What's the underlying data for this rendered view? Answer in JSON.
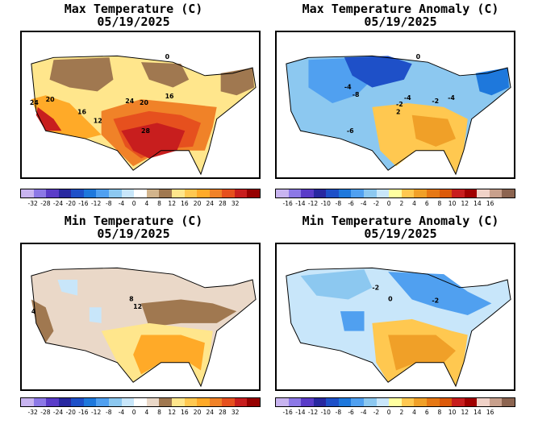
{
  "panels": [
    {
      "id": "max_temp",
      "title": "Max Temperature (C)",
      "date": "05/19/2025",
      "colorbar": {
        "colors": [
          "#c8b4f0",
          "#8c78e6",
          "#5a3cc8",
          "#2828a0",
          "#1e50c8",
          "#1e78dc",
          "#50a0f0",
          "#8cc8f0",
          "#c8e6fa",
          "#ffffff",
          "#d2b48c",
          "#a07850",
          "#ffe68c",
          "#ffc850",
          "#ffaa28",
          "#f08228",
          "#e6501e",
          "#c81e1e",
          "#960000"
        ],
        "tick_labels": [
          "-32",
          "-28",
          "-24",
          "-20",
          "-16",
          "-12",
          "-8",
          "-4",
          "0",
          "4",
          "8",
          "12",
          "16",
          "20",
          "24",
          "28",
          "32"
        ]
      },
      "contour_labels": [
        "24",
        "20",
        "16",
        "12",
        "24",
        "20",
        "16",
        "28",
        "0"
      ]
    },
    {
      "id": "max_anom",
      "title": "Max Temperature Anomaly (C)",
      "date": "05/19/2025",
      "colorbar": {
        "colors": [
          "#c8b4f0",
          "#8c78e6",
          "#5a3cc8",
          "#2828a0",
          "#1e50c8",
          "#1e78dc",
          "#50a0f0",
          "#8cc8f0",
          "#c8e6fa",
          "#ffffa0",
          "#ffc850",
          "#f0a028",
          "#e67814",
          "#dc5a0a",
          "#c81e1e",
          "#a00000",
          "#f0d2c8",
          "#c8a08c",
          "#8c6450"
        ],
        "tick_labels": [
          "-16",
          "-14",
          "-12",
          "-10",
          "-8",
          "-6",
          "-4",
          "-2",
          "0",
          "2",
          "4",
          "6",
          "8",
          "10",
          "12",
          "14",
          "16"
        ]
      },
      "contour_labels": [
        "0",
        "-4",
        "-8",
        "-4",
        "-2",
        "-2",
        "-4",
        "2",
        "-6"
      ]
    },
    {
      "id": "min_temp",
      "title": "Min Temperature (C)",
      "date": "05/19/2025",
      "colorbar": {
        "colors": [
          "#c8b4f0",
          "#8c78e6",
          "#5a3cc8",
          "#2828a0",
          "#1e50c8",
          "#1e78dc",
          "#50a0f0",
          "#8cc8f0",
          "#c8e6fa",
          "#ffffff",
          "#ead8c8",
          "#a07850",
          "#ffe68c",
          "#ffc850",
          "#ffaa28",
          "#f08228",
          "#e6501e",
          "#c81e1e",
          "#960000"
        ],
        "tick_labels": [
          "-32",
          "-28",
          "-24",
          "-20",
          "-16",
          "-12",
          "-8",
          "-4",
          "0",
          "4",
          "8",
          "12",
          "16",
          "20",
          "24",
          "28",
          "32"
        ]
      },
      "contour_labels": [
        "4",
        "8",
        "12"
      ]
    },
    {
      "id": "min_anom",
      "title": "Min Temperature Anomaly (C)",
      "date": "05/19/2025",
      "colorbar": {
        "colors": [
          "#c8b4f0",
          "#8c78e6",
          "#5a3cc8",
          "#2828a0",
          "#1e50c8",
          "#1e78dc",
          "#50a0f0",
          "#8cc8f0",
          "#c8e6fa",
          "#ffffa0",
          "#ffc850",
          "#f0a028",
          "#e67814",
          "#dc5a0a",
          "#c81e1e",
          "#a00000",
          "#f0d2c8",
          "#c8a08c",
          "#8c6450"
        ],
        "tick_labels": [
          "-16",
          "-14",
          "-12",
          "-10",
          "-8",
          "-6",
          "-4",
          "-2",
          "0",
          "2",
          "4",
          "6",
          "8",
          "10",
          "12",
          "14",
          "16"
        ]
      },
      "contour_labels": [
        "-2",
        "0",
        "-2"
      ]
    }
  ]
}
